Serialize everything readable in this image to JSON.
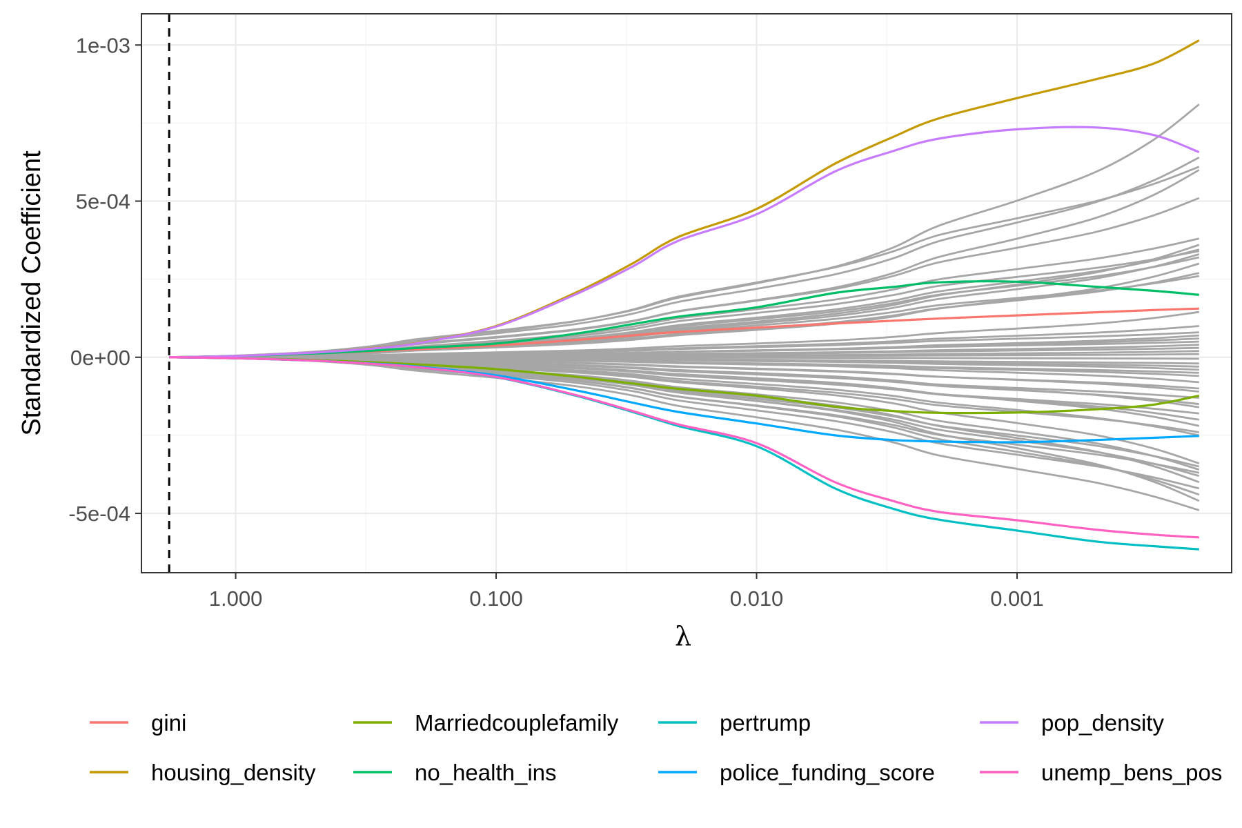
{
  "chart_data": {
    "type": "line",
    "xlabel": "λ",
    "ylabel": "Standardized Coefficient",
    "x_scale": "log10, reversed",
    "xlim": [
      2.3,
      0.00015
    ],
    "ylim": [
      -0.00069,
      0.0011
    ],
    "x_ticks": [
      {
        "value": 1.0,
        "label": "1.000"
      },
      {
        "value": 0.1,
        "label": "0.100"
      },
      {
        "value": 0.01,
        "label": "0.010"
      },
      {
        "value": 0.001,
        "label": "0.001"
      }
    ],
    "y_ticks": [
      {
        "value": 0.001,
        "label": "1e-03"
      },
      {
        "value": 0.0005,
        "label": "5e-04"
      },
      {
        "value": 0.0,
        "label": "0e+00"
      },
      {
        "value": -0.0005,
        "label": "-5e-04"
      }
    ],
    "grid": true,
    "vline": {
      "x": 1.8,
      "style": "dashed"
    },
    "lambda_grid": [
      1.8,
      1.0,
      0.5,
      0.3,
      0.2,
      0.1,
      0.05,
      0.03,
      0.02,
      0.01,
      0.005,
      0.003,
      0.002,
      0.001,
      0.0005,
      0.0003,
      0.0002
    ],
    "series": [
      {
        "name": "gini",
        "color": "#F8766D",
        "values": [
          0,
          4e-06,
          1.2e-05,
          1.9e-05,
          2.6e-05,
          3.8e-05,
          5.5e-05,
          7e-05,
          8.1e-05,
          9.5e-05,
          0.000108,
          0.000117,
          0.000124,
          0.000134,
          0.000144,
          0.000151,
          0.000156
        ]
      },
      {
        "name": "housing_density",
        "color": "#C49A00",
        "values": [
          0,
          4e-06,
          1.5e-05,
          2.9e-05,
          4.6e-05,
          0.0001,
          0.000205,
          0.0003,
          0.000385,
          0.000475,
          0.00062,
          0.000705,
          0.000765,
          0.00083,
          0.00089,
          0.00094,
          0.001015
        ]
      },
      {
        "name": "Marriedcouplefamily",
        "color": "#7CAE00",
        "values": [
          0,
          -3e-06,
          -9e-06,
          -1.6e-05,
          -2.3e-05,
          -3.8e-05,
          -6.2e-05,
          -8.4e-05,
          -0.000101,
          -0.000123,
          -0.000158,
          -0.000172,
          -0.000178,
          -0.000177,
          -0.000167,
          -0.000152,
          -0.000123
        ]
      },
      {
        "name": "no_health_ins",
        "color": "#00BE67",
        "values": [
          0,
          4e-06,
          1.2e-05,
          2.1e-05,
          3e-05,
          4.4e-05,
          7.5e-05,
          0.000106,
          0.00013,
          0.00016,
          0.000206,
          0.000225,
          0.00024,
          0.000242,
          0.000226,
          0.000213,
          0.0002
        ]
      },
      {
        "name": "pertrump",
        "color": "#00BFC4",
        "values": [
          0,
          -3e-06,
          -1.1e-05,
          -2.1e-05,
          -3.2e-05,
          -6.4e-05,
          -0.000122,
          -0.000175,
          -0.00022,
          -0.000285,
          -0.00042,
          -0.000485,
          -0.00052,
          -0.000555,
          -0.00059,
          -0.000605,
          -0.000615
        ]
      },
      {
        "name": "police_funding_score",
        "color": "#00A9FF",
        "values": [
          0,
          -3e-06,
          -1.1e-05,
          -2e-05,
          -3e-05,
          -5.8e-05,
          -0.000105,
          -0.000145,
          -0.000175,
          -0.000212,
          -0.00025,
          -0.000265,
          -0.00027,
          -0.000272,
          -0.000265,
          -0.000258,
          -0.000252
        ]
      },
      {
        "name": "pop_density",
        "color": "#C77CFF",
        "values": [
          0,
          4e-06,
          1.5e-05,
          2.8e-05,
          4.5e-05,
          9.8e-05,
          0.0002,
          0.00029,
          0.000373,
          0.000458,
          0.000595,
          0.00066,
          0.0007,
          0.00073,
          0.000736,
          0.000712,
          0.000657
        ]
      },
      {
        "name": "unemp_bens_pos",
        "color": "#FF61C3",
        "values": [
          0,
          -3e-06,
          -1.1e-05,
          -2.1e-05,
          -3.2e-05,
          -6.3e-05,
          -0.00012,
          -0.000172,
          -0.000215,
          -0.000275,
          -0.0004,
          -0.00046,
          -0.000495,
          -0.000522,
          -0.000552,
          -0.000568,
          -0.000577
        ]
      }
    ],
    "other_series": {
      "color": "#A6A6A6",
      "endpoints": [
        0.00081,
        0.00064,
        0.00061,
        0.0006,
        0.00051,
        0.00038,
        0.00036,
        0.000345,
        0.00034,
        0.00033,
        0.00032,
        0.0003,
        0.00027,
        0.00026,
        0.000145,
        0.0001,
        8e-05,
        7e-05,
        6e-05,
        5e-05,
        4e-05,
        3e-05,
        2e-05,
        1e-05,
        -5e-06,
        -2e-05,
        -3e-05,
        -4e-05,
        -5e-05,
        -6e-05,
        -8e-05,
        -0.0001,
        -0.00011,
        -0.00013,
        -0.00015,
        -0.00016,
        -0.00018,
        -0.0002,
        -0.00022,
        -0.00024,
        -0.00025,
        -0.00034,
        -0.00035,
        -0.00036,
        -0.00037,
        -0.00038,
        -0.0004,
        -0.00042,
        -0.00044,
        -0.00046,
        -0.00049
      ]
    },
    "legend": {
      "position": "bottom",
      "columns": 4
    }
  }
}
